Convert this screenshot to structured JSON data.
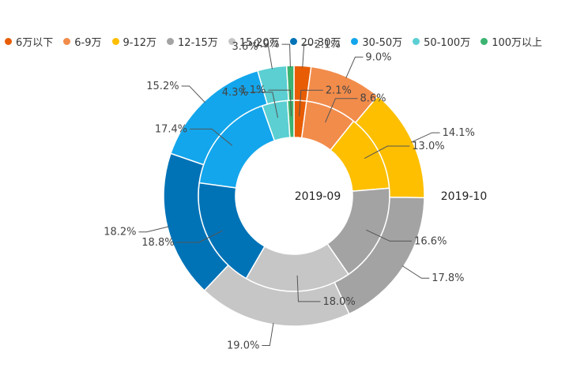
{
  "chart_data": {
    "type": "pie",
    "subtype": "nested-donut",
    "legend_position": "top",
    "categories": [
      "6万以下",
      "6-9万",
      "9-12万",
      "12-15万",
      "15-20万",
      "20-30万",
      "30-50万",
      "50-100万",
      "100万以上"
    ],
    "colors": [
      "#e85d04",
      "#f28c4b",
      "#fdbf00",
      "#a3a3a3",
      "#c6c6c6",
      "#0073b7",
      "#13a6ec",
      "#5bcfd2",
      "#3cb371"
    ],
    "series": [
      {
        "name": "2019-09",
        "ring": "inner",
        "values": [
          2.1,
          8.6,
          13.0,
          16.6,
          18.0,
          18.8,
          17.4,
          4.3,
          1.1
        ],
        "labels": [
          "2.1%",
          "8.6%",
          "13.0%",
          "16.6%",
          "18.0%",
          "18.8%",
          "17.4%",
          "4.3%",
          "1.1%"
        ]
      },
      {
        "name": "2019-10",
        "ring": "outer",
        "values": [
          2.1,
          9.0,
          14.1,
          17.8,
          19.0,
          18.2,
          15.2,
          3.6,
          0.9
        ],
        "labels": [
          "2.1%",
          "9.0%",
          "14.1%",
          "17.8%",
          "19.0%",
          "18.2%",
          "15.2%",
          "3.6%",
          "0.9%"
        ]
      }
    ]
  }
}
